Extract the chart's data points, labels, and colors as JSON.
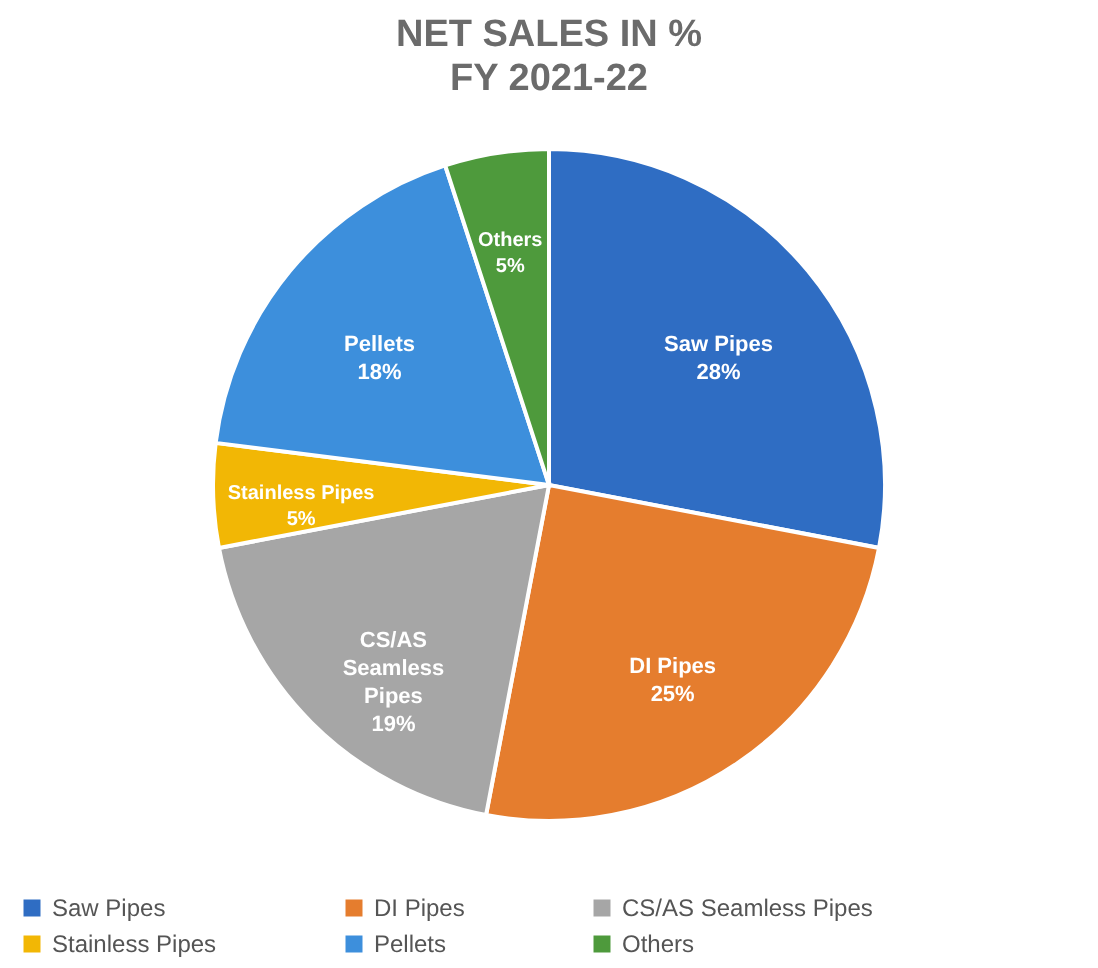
{
  "chart_data": {
    "type": "pie",
    "title": "NET SALES IN %",
    "subtitle": "FY 2021-22",
    "categories": [
      "Saw Pipes",
      "DI Pipes",
      "CS/AS Seamless Pipes",
      "Stainless Pipes",
      "Pellets",
      "Others"
    ],
    "values": [
      28,
      25,
      19,
      5,
      18,
      5
    ],
    "value_labels": [
      "28%",
      "25%",
      "19%",
      "5%",
      "18%",
      "5%"
    ],
    "colors": [
      "#2f6dc3",
      "#e57d2e",
      "#a6a6a6",
      "#f2b705",
      "#3d8fdc",
      "#4e9a3c"
    ],
    "legend": "bottom"
  }
}
